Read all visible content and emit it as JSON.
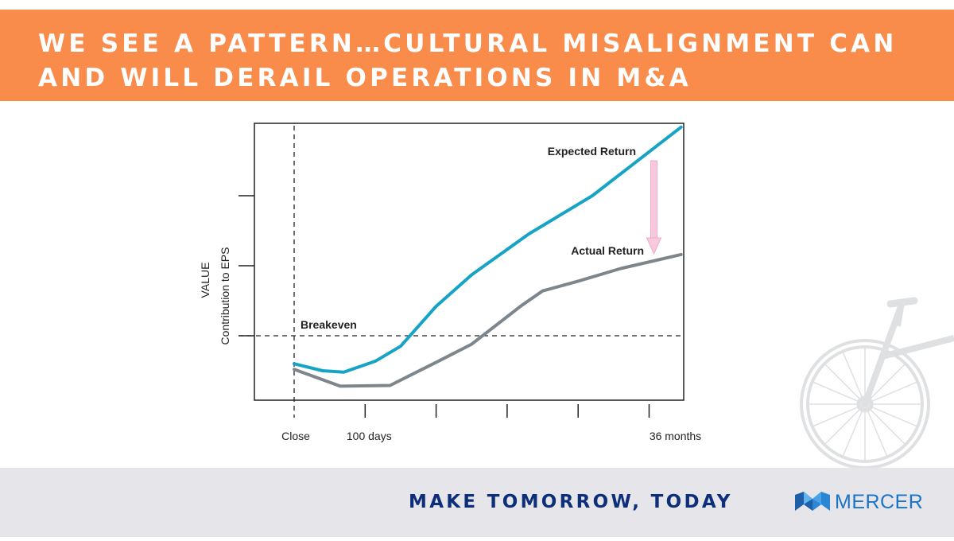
{
  "banner": {
    "title": "We see a pattern…Cultural misalignment can and will derail operations in M&A"
  },
  "chart_data": {
    "type": "line",
    "ylabel": "VALUE",
    "ylabel_sub": "Contribution to EPS",
    "x_tick_labels": [
      {
        "x": 0,
        "label": "Close"
      },
      {
        "x": 1,
        "label": "100 days"
      },
      {
        "x": 5,
        "label": "36 months"
      }
    ],
    "x_tick_count": 6,
    "y_tick_count": 3,
    "ylim": [
      -1,
      3
    ],
    "xlim": [
      0,
      5.45
    ],
    "breakeven_label": "Breakeven",
    "breakeven_y": 0,
    "colors": {
      "expected": "#17a3c4",
      "actual": "#7d868c",
      "gap_arrow": "#f7c9dc"
    },
    "series": [
      {
        "name": "Expected Return",
        "key": "expected",
        "x": [
          0,
          0.4,
          0.7,
          1.15,
          1.5,
          2.0,
          2.5,
          3.3,
          4.2,
          5.45
        ],
        "y": [
          -0.4,
          -0.5,
          -0.52,
          -0.36,
          -0.15,
          0.42,
          0.87,
          1.45,
          2.0,
          2.98
        ]
      },
      {
        "name": "Actual Return",
        "key": "actual",
        "x": [
          0,
          0.65,
          1.35,
          2.0,
          2.5,
          3.2,
          3.5,
          4.0,
          4.6,
          5.45
        ],
        "y": [
          -0.48,
          -0.72,
          -0.71,
          -0.38,
          -0.12,
          0.43,
          0.64,
          0.78,
          0.96,
          1.16
        ]
      }
    ],
    "gap_arrow": {
      "x": 5.0,
      "y_from": 2.5,
      "y_to": 1.17
    }
  },
  "footer": {
    "tagline": "MAKE TOMORROW, TODAY",
    "brand_name": "MERCER",
    "brand_color": "#1a74c9",
    "tagline_color": "#0d2e79"
  }
}
